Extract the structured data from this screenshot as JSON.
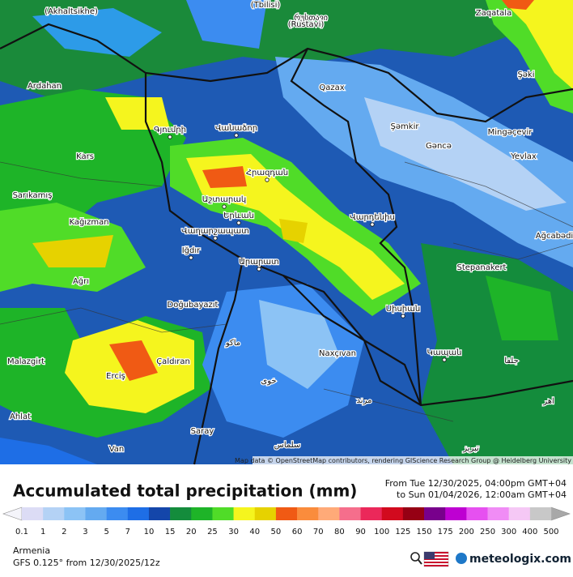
{
  "map": {
    "labels": [
      "(Akhaltsikhe)",
      "(Tbilisi)",
      "რუსთავი",
      "(Rustavi)",
      "Zaqatala",
      "Ardahan",
      "Qazax",
      "Şəki",
      "Գյումրի",
      "Վանաձոր",
      "Şəmkir",
      "Mingəçevir",
      "Gəncə",
      "Yevlax",
      "Kars",
      "Հրազդան",
      "Sarıkamış",
      "Աշտարակ",
      "Երևան",
      "Վարդենիս",
      "Ağcabədi",
      "Kağızman",
      "Վաղարշապատ",
      "Iğdır",
      "Արարատ",
      "Stepanakert",
      "Ağrı",
      "Doğubayazıt",
      "Սիսիան",
      "ماکو",
      "Naxçıvan",
      "Կապան",
      "جلفا",
      "Malazgirt",
      "Çaldıran",
      "Erciş",
      "خوی",
      "مرند",
      "Ahlat",
      "Saray",
      "سلماس",
      "تبریز",
      "Van",
      "اهر"
    ],
    "attribution": "Map data © OpenStreetMap contributors, rendering GIScience Research Group @ Heidelberg University"
  },
  "header": {
    "title": "Accumulated total precipitation (mm)",
    "from": "From Tue 12/30/2025, 04:00pm GMT+04",
    "to": "to Sun 01/04/2026, 12:00am GMT+04"
  },
  "legend": {
    "values": [
      "0.1",
      "1",
      "2",
      "3",
      "5",
      "7",
      "10",
      "15",
      "20",
      "25",
      "30",
      "40",
      "50",
      "60",
      "70",
      "80",
      "90",
      "100",
      "125",
      "150",
      "175",
      "200",
      "250",
      "300",
      "400",
      "500"
    ],
    "colors": [
      "#dcdcf5",
      "#b4d2f5",
      "#8cc3f5",
      "#64aaf0",
      "#3c8cf0",
      "#1e6ee6",
      "#1446aa",
      "#148c3c",
      "#1eb428",
      "#50dc28",
      "#f5f51e",
      "#e6d200",
      "#f05a14",
      "#fa8c3c",
      "#ffaa78",
      "#f56e8c",
      "#eb285a",
      "#d20a1e",
      "#960014",
      "#78008c",
      "#be00d2",
      "#e650f0",
      "#f08cf5",
      "#f5c8f5",
      "#c8c8c8"
    ]
  },
  "footer": {
    "region": "Armenia",
    "model": "GFS 0.125° from  12/30/2025/12z",
    "brand": "meteologix.com"
  }
}
